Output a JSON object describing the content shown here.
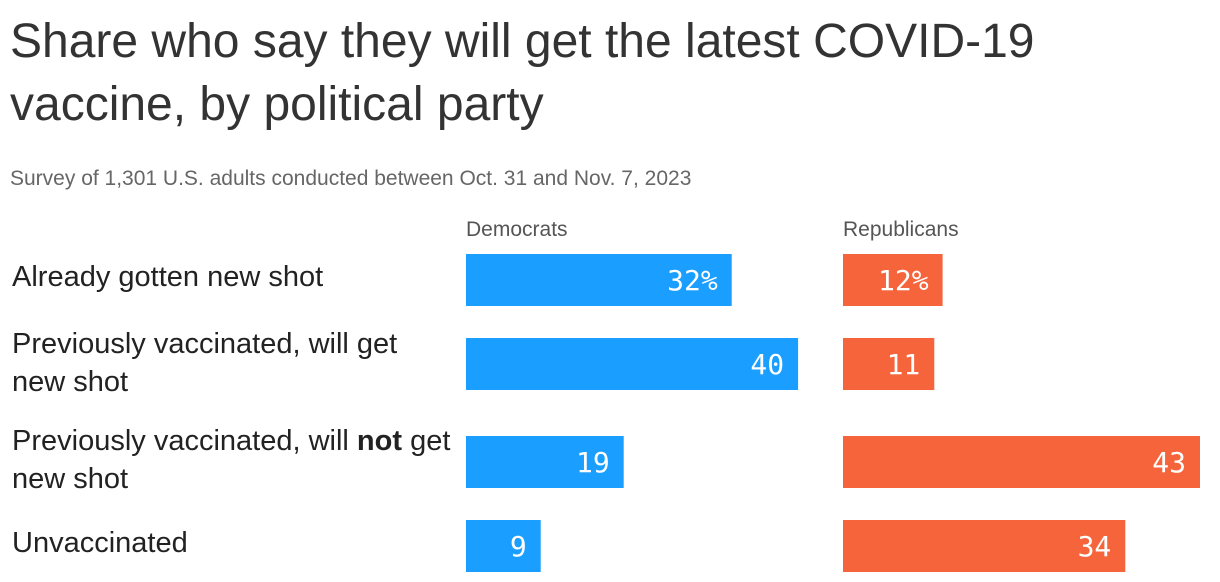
{
  "title": "Share who say they will get the latest COVID-19 vaccine, by political party",
  "subtitle": "Survey of 1,301 U.S. adults conducted between Oct. 31 and Nov. 7, 2023",
  "colors": {
    "democrats": "#1a9eff",
    "republicans": "#f6643c"
  },
  "chart_data": {
    "type": "bar",
    "orientation": "horizontal",
    "layout": "small-multiples",
    "title": "Share who say they will get the latest COVID-19 vaccine, by political party",
    "subtitle": "Survey of 1,301 U.S. adults conducted between Oct. 31 and Nov. 7, 2023",
    "categories": [
      "Already gotten new shot",
      "Previously vaccinated, will get new shot",
      "Previously vaccinated, will not get new shot",
      "Unvaccinated"
    ],
    "category_parts": [
      {
        "before": "Already gotten new shot",
        "bold": "",
        "after": ""
      },
      {
        "before": "Previously vaccinated, will get new shot",
        "bold": "",
        "after": ""
      },
      {
        "before": "Previously vaccinated, will ",
        "bold": "not",
        "after": " get new shot"
      },
      {
        "before": "Unvaccinated",
        "bold": "",
        "after": ""
      }
    ],
    "series": [
      {
        "name": "Democrats",
        "values": [
          32,
          40,
          19,
          9
        ],
        "labels": [
          "32%",
          "40",
          "19",
          "9"
        ]
      },
      {
        "name": "Republicans",
        "values": [
          12,
          11,
          43,
          34
        ],
        "labels": [
          "12%",
          "11",
          "43",
          "34"
        ]
      }
    ],
    "unit": "%",
    "xlim": [
      0,
      43
    ],
    "grid": false,
    "legend": "none"
  }
}
